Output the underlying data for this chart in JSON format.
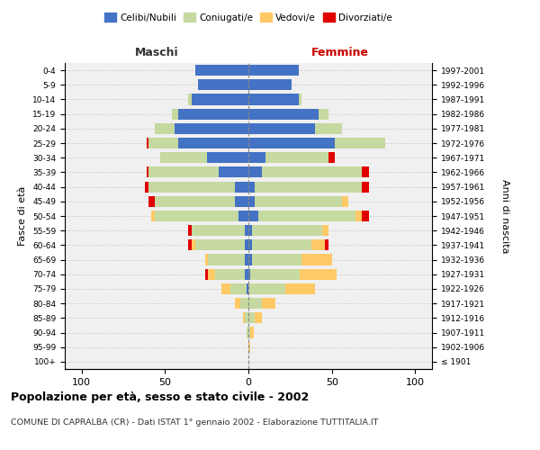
{
  "age_groups": [
    "100+",
    "95-99",
    "90-94",
    "85-89",
    "80-84",
    "75-79",
    "70-74",
    "65-69",
    "60-64",
    "55-59",
    "50-54",
    "45-49",
    "40-44",
    "35-39",
    "30-34",
    "25-29",
    "20-24",
    "15-19",
    "10-14",
    "5-9",
    "0-4"
  ],
  "birth_years": [
    "≤ 1901",
    "1902-1906",
    "1907-1911",
    "1912-1916",
    "1917-1921",
    "1922-1926",
    "1927-1931",
    "1932-1936",
    "1937-1941",
    "1942-1946",
    "1947-1951",
    "1952-1956",
    "1957-1961",
    "1962-1966",
    "1967-1971",
    "1972-1976",
    "1977-1981",
    "1982-1986",
    "1987-1991",
    "1992-1996",
    "1997-2001"
  ],
  "male": {
    "celibi": [
      0,
      0,
      0,
      0,
      0,
      1,
      2,
      2,
      2,
      2,
      6,
      8,
      8,
      18,
      25,
      42,
      44,
      42,
      34,
      30,
      32
    ],
    "coniugati": [
      0,
      0,
      1,
      2,
      5,
      10,
      18,
      22,
      30,
      32,
      50,
      48,
      52,
      42,
      28,
      18,
      12,
      4,
      2,
      0,
      0
    ],
    "vedovi": [
      0,
      0,
      0,
      1,
      3,
      5,
      4,
      2,
      2,
      0,
      2,
      0,
      0,
      0,
      0,
      0,
      0,
      0,
      0,
      0,
      0
    ],
    "divorziati": [
      0,
      0,
      0,
      0,
      0,
      0,
      2,
      0,
      2,
      2,
      0,
      4,
      2,
      1,
      0,
      1,
      0,
      0,
      0,
      0,
      0
    ]
  },
  "female": {
    "nubili": [
      0,
      0,
      0,
      0,
      0,
      0,
      1,
      2,
      2,
      2,
      6,
      4,
      4,
      8,
      10,
      52,
      40,
      42,
      30,
      26,
      30
    ],
    "coniugate": [
      0,
      0,
      1,
      4,
      8,
      22,
      30,
      30,
      36,
      42,
      58,
      52,
      64,
      60,
      38,
      30,
      16,
      6,
      2,
      0,
      0
    ],
    "vedove": [
      0,
      1,
      2,
      4,
      8,
      18,
      22,
      18,
      8,
      4,
      4,
      4,
      0,
      0,
      0,
      0,
      0,
      0,
      0,
      0,
      0
    ],
    "divorziate": [
      0,
      0,
      0,
      0,
      0,
      0,
      0,
      0,
      2,
      0,
      4,
      0,
      4,
      4,
      4,
      0,
      0,
      0,
      0,
      0,
      0
    ]
  },
  "colors": {
    "celibi": "#4472C4",
    "coniugati": "#c5d9a0",
    "vedovi": "#ffc966",
    "divorziati": "#e00000"
  },
  "xlim": 110,
  "title": "Popolazione per età, sesso e stato civile - 2002",
  "subtitle": "COMUNE DI CAPRALBA (CR) - Dati ISTAT 1° gennaio 2002 - Elaborazione TUTTITALIA.IT",
  "ylabel_left": "Fasce di età",
  "ylabel_right": "Anni di nascita",
  "xlabel_left": "Maschi",
  "xlabel_right": "Femmine",
  "bg_color": "#ffffff",
  "plot_bg_color": "#f0f0f0"
}
